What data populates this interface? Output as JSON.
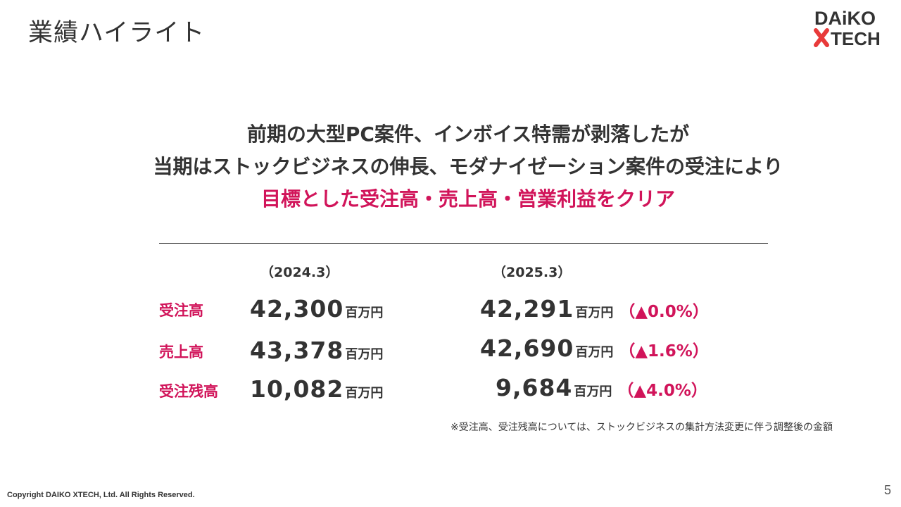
{
  "slide": {
    "title": "業績ハイライト",
    "page_number": "5",
    "copyright": "Copyright DAIKO XTECH, Ltd. All Rights Reserved."
  },
  "logo": {
    "line1": "DAiKO",
    "line2": "XTECH",
    "brand_red": "#e83a3a",
    "brand_dark": "#333333"
  },
  "headline": {
    "line1": "前期の大型PC案件、インボイス特需が剥落したが",
    "line2": "当期はストックビジネスの伸長、モダナイゼーション案件の受注により",
    "line3": "目標とした受注高・売上高・営業利益をクリア"
  },
  "periods": {
    "previous": "（2024.3）",
    "current": "（2025.3）"
  },
  "metrics": [
    {
      "label": "受注高",
      "prev_value": "42,300",
      "prev_unit": "百万円",
      "curr_value": "42,291",
      "curr_unit": "百万円",
      "change": "（▲0.0%）"
    },
    {
      "label": "売上高",
      "prev_value": "43,378",
      "prev_unit": "百万円",
      "curr_value": "42,690",
      "curr_unit": "百万円",
      "change": "（▲1.6%）"
    },
    {
      "label": "受注残高",
      "prev_value": "10,082",
      "prev_unit": "百万円",
      "curr_value": "9,684",
      "curr_unit": "百万円",
      "change": "（▲4.0%）"
    }
  ],
  "note": "※受注高、受注残高については、ストックビジネスの集計方法変更に伴う調整後の金額",
  "colors": {
    "accent": "#d1145a",
    "text": "#333333"
  }
}
